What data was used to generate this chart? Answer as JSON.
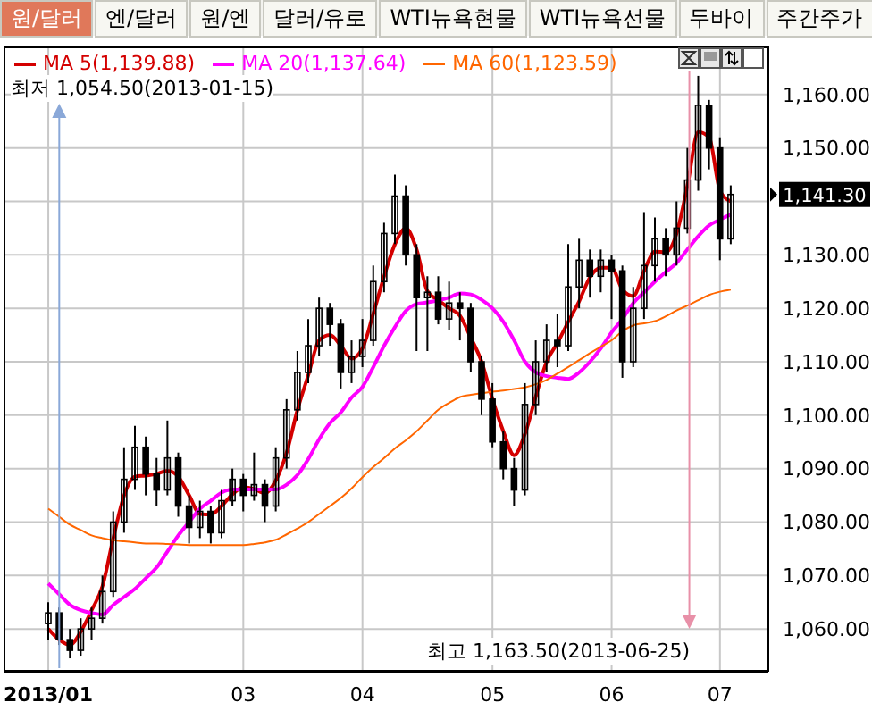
{
  "chart_data": {
    "type": "candlestick",
    "categories": [
      "2013/01",
      null,
      null,
      null,
      null,
      null,
      null,
      null,
      null,
      null,
      null,
      null,
      null,
      null,
      null,
      null,
      null,
      null,
      "03",
      null,
      null,
      null,
      null,
      null,
      null,
      null,
      null,
      null,
      null,
      "04",
      null,
      null,
      null,
      null,
      null,
      null,
      null,
      null,
      null,
      null,
      null,
      "05",
      null,
      null,
      null,
      null,
      null,
      null,
      null,
      null,
      null,
      null,
      "06",
      null,
      null,
      null,
      null,
      null,
      null,
      null,
      null,
      null,
      "07",
      null
    ],
    "ohlc": [
      [
        1061,
        1065,
        1058,
        1063
      ],
      [
        1063,
        1064,
        1057,
        1058
      ],
      [
        1058,
        1060,
        1054.5,
        1056
      ],
      [
        1056,
        1062,
        1055,
        1060
      ],
      [
        1060,
        1064,
        1058,
        1062
      ],
      [
        1062,
        1070,
        1061,
        1067
      ],
      [
        1067,
        1082,
        1066,
        1080
      ],
      [
        1080,
        1094,
        1078,
        1088
      ],
      [
        1088,
        1098,
        1086,
        1094
      ],
      [
        1094,
        1096,
        1085,
        1089
      ],
      [
        1089,
        1092,
        1083,
        1086
      ],
      [
        1086,
        1099,
        1085,
        1092
      ],
      [
        1092,
        1093,
        1081,
        1083
      ],
      [
        1083,
        1085,
        1076,
        1079
      ],
      [
        1079,
        1084,
        1077,
        1082
      ],
      [
        1082,
        1083,
        1076,
        1078
      ],
      [
        1078,
        1086,
        1077,
        1084
      ],
      [
        1084,
        1090,
        1083,
        1088
      ],
      [
        1088,
        1089,
        1082,
        1085
      ],
      [
        1085,
        1093,
        1084,
        1087
      ],
      [
        1087,
        1088,
        1080,
        1083
      ],
      [
        1083,
        1094,
        1082,
        1092
      ],
      [
        1092,
        1103,
        1090,
        1101
      ],
      [
        1101,
        1112,
        1099,
        1108
      ],
      [
        1108,
        1118,
        1106,
        1113
      ],
      [
        1113,
        1122,
        1111,
        1120
      ],
      [
        1120,
        1121,
        1113,
        1117
      ],
      [
        1117,
        1118,
        1105,
        1108
      ],
      [
        1108,
        1114,
        1106,
        1111
      ],
      [
        1111,
        1118,
        1109,
        1114
      ],
      [
        1114,
        1128,
        1113,
        1125
      ],
      [
        1125,
        1136,
        1123,
        1134
      ],
      [
        1134,
        1145,
        1132,
        1141
      ],
      [
        1141,
        1143,
        1128,
        1130
      ],
      [
        1130,
        1132,
        1112,
        1122
      ],
      [
        1122,
        1126,
        1112,
        1123
      ],
      [
        1123,
        1126,
        1117,
        1118
      ],
      [
        1118,
        1125,
        1116,
        1121
      ],
      [
        1121,
        1123,
        1114,
        1120
      ],
      [
        1120,
        1121,
        1108,
        1110
      ],
      [
        1110,
        1111,
        1100,
        1103
      ],
      [
        1103,
        1106,
        1094,
        1095
      ],
      [
        1095,
        1097,
        1088,
        1090
      ],
      [
        1090,
        1092,
        1083,
        1086
      ],
      [
        1086,
        1106,
        1085,
        1102
      ],
      [
        1102,
        1114,
        1100,
        1110
      ],
      [
        1110,
        1117,
        1108,
        1114
      ],
      [
        1114,
        1119,
        1109,
        1113
      ],
      [
        1113,
        1132,
        1112,
        1124
      ],
      [
        1124,
        1133,
        1120,
        1129
      ],
      [
        1129,
        1131,
        1122,
        1126
      ],
      [
        1126,
        1131,
        1123,
        1129
      ],
      [
        1129,
        1130,
        1118,
        1127
      ],
      [
        1127,
        1128,
        1107,
        1110
      ],
      [
        1110,
        1124,
        1109,
        1120
      ],
      [
        1120,
        1138,
        1118,
        1128
      ],
      [
        1128,
        1137,
        1125,
        1133
      ],
      [
        1133,
        1135,
        1126,
        1130
      ],
      [
        1130,
        1140,
        1128,
        1135
      ],
      [
        1135,
        1150,
        1134,
        1144
      ],
      [
        1144,
        1163.5,
        1142,
        1158
      ],
      [
        1158,
        1159,
        1146,
        1150
      ],
      [
        1150,
        1152,
        1129,
        1133
      ],
      [
        1133,
        1143,
        1132,
        1141.3
      ]
    ],
    "series": [
      {
        "name": "MA 5(1,139.88)",
        "type": "line",
        "color": "#d40000",
        "values": [
          1060,
          1058,
          1057,
          1059.5,
          1063.5,
          1068,
          1077,
          1085,
          1088.5,
          1088.7,
          1089,
          1089.6,
          1088.5,
          1085,
          1081.5,
          1081.4,
          1083,
          1085.2,
          1086.5,
          1086.2,
          1085.4,
          1087.8,
          1093,
          1101,
          1107.5,
          1114,
          1115,
          1113,
          1110.6,
          1112.5,
          1119,
          1126,
          1132,
          1135,
          1131,
          1123.2,
          1121.5,
          1120,
          1118.6,
          1114.5,
          1110,
          1103,
          1097,
          1092.5,
          1096.5,
          1103.5,
          1110,
          1113.5,
          1117.5,
          1121.3,
          1125.8,
          1127.6,
          1127.6,
          1123.5,
          1122.3,
          1127,
          1130.6,
          1130.5,
          1134,
          1143,
          1153,
          1152,
          1142,
          1140
        ]
      },
      {
        "name": "MA 20(1,137.64)",
        "type": "line",
        "color": "#ff00ff",
        "values": [
          1068.5,
          1066.5,
          1064.5,
          1063.5,
          1063,
          1062.7,
          1064.5,
          1066,
          1067.5,
          1069.5,
          1071.5,
          1074.5,
          1077.5,
          1080,
          1082.5,
          1084,
          1085.5,
          1086.1,
          1086.1,
          1086.1,
          1086.1,
          1086.1,
          1087,
          1088.8,
          1091.8,
          1095.5,
          1098.5,
          1100.5,
          1103.3,
          1105.3,
          1109,
          1113,
          1116.5,
          1119.5,
          1120.8,
          1121.1,
          1121.5,
          1122,
          1122.8,
          1122.6,
          1121.6,
          1120,
          1117.5,
          1114,
          1110,
          1108,
          1107.3,
          1107,
          1106.8,
          1108,
          1110,
          1112.5,
          1115.5,
          1118,
          1121,
          1123,
          1125,
          1126.8,
          1128.5,
          1131,
          1133.5,
          1135.5,
          1136.6,
          1137.5
        ]
      },
      {
        "name": "MA 60(1,123.59)",
        "type": "line",
        "color": "#ff6600",
        "values": [
          1082.5,
          1081,
          1079.5,
          1078.5,
          1077.5,
          1077,
          1076.6,
          1076.4,
          1076.2,
          1076,
          1076,
          1075.9,
          1075.8,
          1075.7,
          1075.7,
          1075.7,
          1075.7,
          1075.7,
          1075.7,
          1075.9,
          1076.2,
          1076.7,
          1077.7,
          1078.8,
          1080,
          1081.5,
          1083,
          1084.5,
          1086.3,
          1088.4,
          1090.3,
          1092,
          1093.8,
          1095.3,
          1097,
          1099,
          1101,
          1102.3,
          1103.4,
          1103.8,
          1104.1,
          1104.4,
          1104.6,
          1104.9,
          1105.2,
          1105.8,
          1106.6,
          1107.8,
          1109,
          1110.3,
          1111.6,
          1112.8,
          1114,
          1115.7,
          1116.8,
          1117.2,
          1117.6,
          1118.5,
          1119.6,
          1120.5,
          1121.5,
          1122.5,
          1123.1,
          1123.5
        ]
      }
    ],
    "ylim": [
      1052,
      1169
    ],
    "yticks": [
      {
        "value": 1060,
        "label": "1,060.00"
      },
      {
        "value": 1070,
        "label": "1,070.00"
      },
      {
        "value": 1080,
        "label": "1,080.00"
      },
      {
        "value": 1090,
        "label": "1,090.00"
      },
      {
        "value": 1100,
        "label": "1,100.00"
      },
      {
        "value": 1110,
        "label": "1,110.00"
      },
      {
        "value": 1120,
        "label": "1,120.00"
      },
      {
        "value": 1130,
        "label": "1,130.00"
      },
      {
        "value": 1140,
        "label": null
      },
      {
        "value": 1150,
        "label": "1,150.00"
      },
      {
        "value": 1160,
        "label": "1,160.00"
      }
    ],
    "grid": true,
    "legend": "top left",
    "marker": "none",
    "annotations": [
      "최저 1,054.50(2013-01-15)",
      "최고 1,163.50(2013-06-25)",
      "1,141.30",
      "원/달러",
      "엔/달러",
      "원/엔",
      "달러/유로",
      "WTI뉴욕현물",
      "WTI뉴욕선물",
      "두바이",
      "주간주가"
    ]
  }
}
